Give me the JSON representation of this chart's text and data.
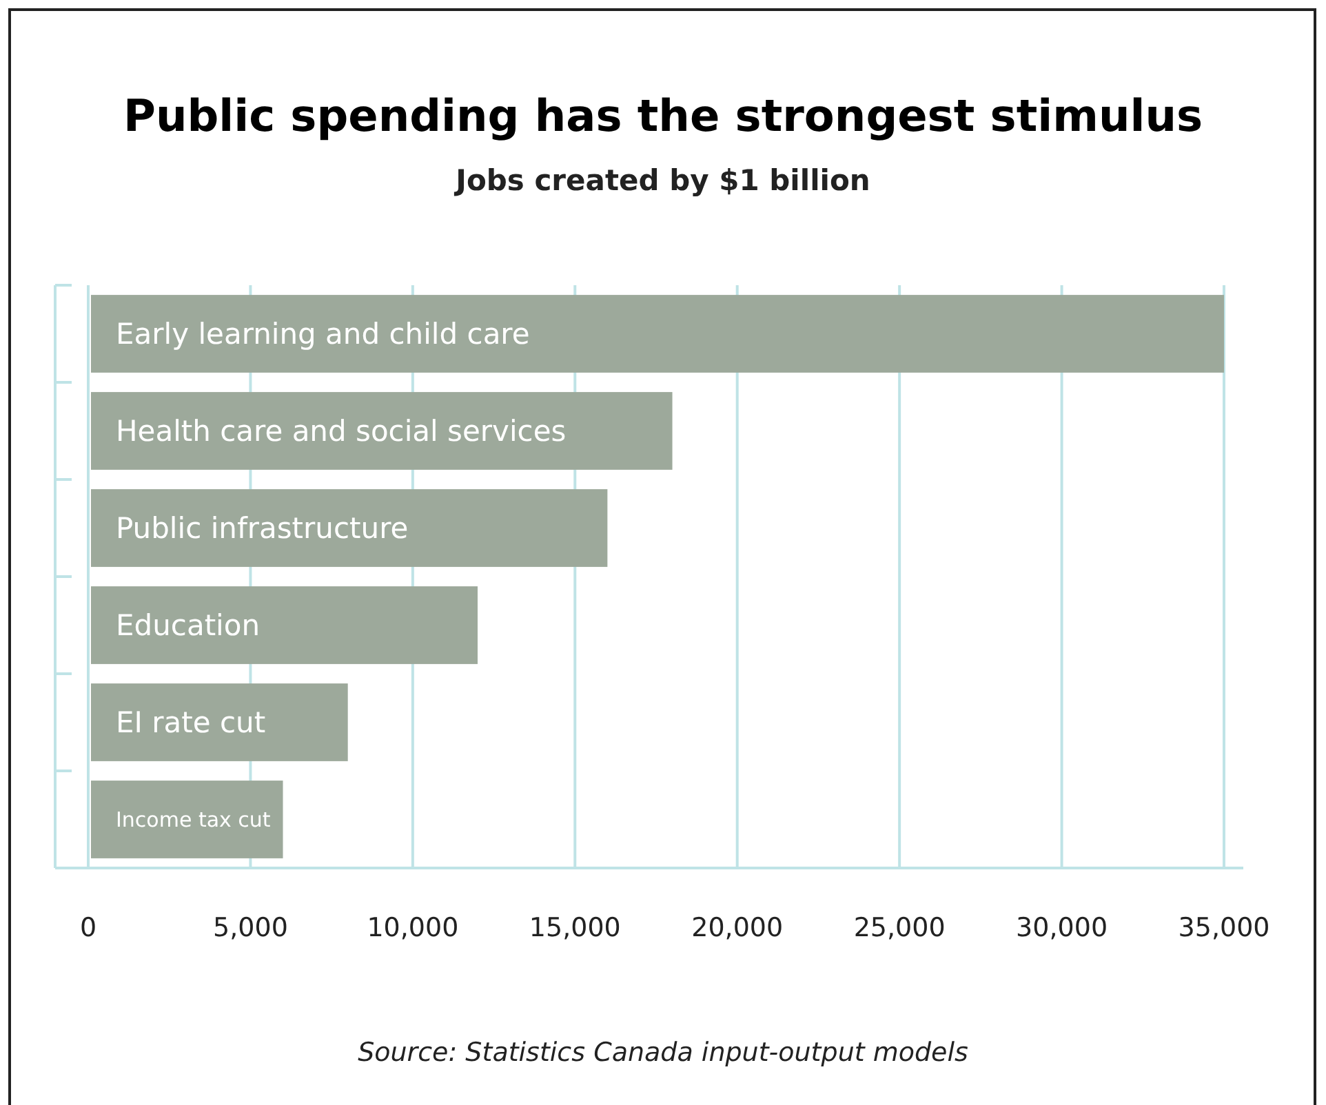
{
  "chart_data": {
    "type": "bar",
    "orientation": "horizontal",
    "title": "Public spending has the strongest stimulus",
    "subtitle": "Jobs created by $1 billion",
    "categories": [
      "Early learning and child care",
      "Health care and social services",
      "Public infrastructure",
      "Education",
      "EI rate cut",
      "Income tax cut"
    ],
    "values": [
      35000,
      18000,
      16000,
      12000,
      8000,
      6000
    ],
    "color": "#9da99b",
    "xlim": [
      0,
      35000
    ],
    "xticks": [
      0,
      {
        "value": 5000,
        "label": "5,000"
      },
      {
        "value": 10000,
        "label": "10,000"
      },
      {
        "value": 15000,
        "label": "15,000"
      },
      {
        "value": 20000,
        "label": "20,000"
      },
      {
        "value": 25000,
        "label": "25,000"
      },
      {
        "value": 30000,
        "label": "30,000"
      },
      {
        "value": 35000,
        "label": "35,000"
      }
    ],
    "grid": "x",
    "annotations": [
      "Source: Statistics Canada input-output models"
    ]
  }
}
